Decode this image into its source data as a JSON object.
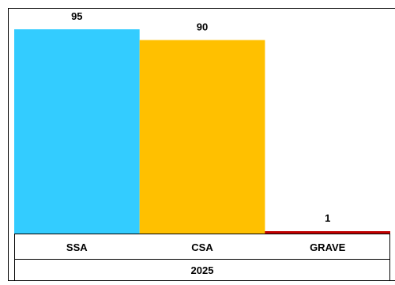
{
  "chart_data": {
    "type": "bar",
    "categories": [
      "SSA",
      "CSA",
      "GRAVE"
    ],
    "group_label": "2025",
    "values": [
      95,
      90,
      1
    ],
    "colors": [
      "#33CCFF",
      "#FFC000",
      "#C00000"
    ],
    "ylim": [
      0,
      95
    ],
    "grid": false,
    "legend": "none",
    "title": "",
    "xlabel": "",
    "ylabel": ""
  }
}
